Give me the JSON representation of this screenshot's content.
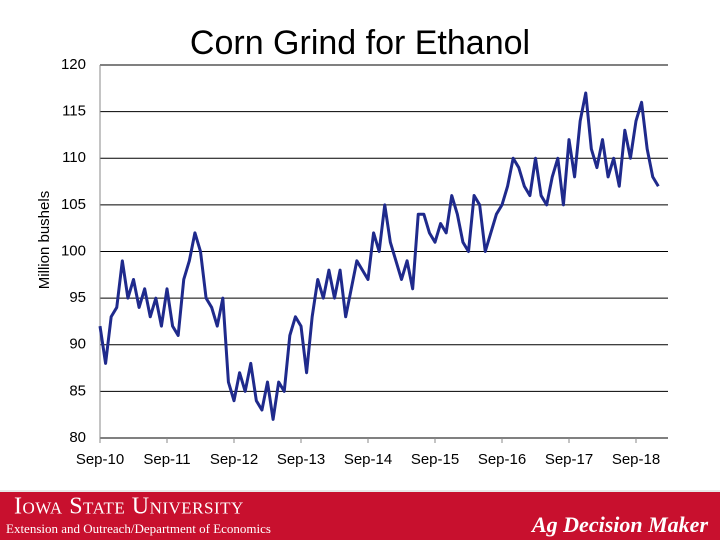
{
  "chart_data": {
    "type": "line",
    "title": "Corn Grind for Ethanol",
    "y_label": "Million bushels",
    "categories": [
      "Sep-10",
      null,
      null,
      null,
      null,
      null,
      null,
      null,
      null,
      null,
      null,
      null,
      "Sep-11",
      null,
      null,
      null,
      null,
      null,
      null,
      null,
      null,
      null,
      null,
      null,
      "Sep-12",
      null,
      null,
      null,
      null,
      null,
      null,
      null,
      null,
      null,
      null,
      null,
      "Sep-13",
      null,
      null,
      null,
      null,
      null,
      null,
      null,
      null,
      null,
      null,
      null,
      "Sep-14",
      null,
      null,
      null,
      null,
      null,
      null,
      null,
      null,
      null,
      null,
      null,
      "Sep-15",
      null,
      null,
      null,
      null,
      null,
      null,
      null,
      null,
      null,
      null,
      null,
      "Sep-16",
      null,
      null,
      null,
      null,
      null,
      null,
      null,
      null,
      null,
      null,
      null,
      "Sep-17",
      null,
      null,
      null,
      null,
      null,
      null,
      null,
      null,
      null,
      null,
      null,
      "Sep-18",
      null,
      null,
      null,
      null
    ],
    "series": [
      {
        "color": "#1f2a8c",
        "values": [
          92,
          88,
          93,
          94,
          99,
          95,
          97,
          94,
          96,
          93,
          95,
          92,
          96,
          92,
          91,
          97,
          99,
          102,
          100,
          95,
          94,
          92,
          95,
          86,
          84,
          87,
          85,
          88,
          84,
          83,
          86,
          82,
          86,
          85,
          91,
          93,
          92,
          87,
          93,
          97,
          95,
          98,
          95,
          98,
          93,
          96,
          99,
          98,
          97,
          102,
          100,
          105,
          101,
          99,
          97,
          99,
          96,
          104,
          104,
          102,
          101,
          103,
          102,
          106,
          104,
          101,
          100,
          106,
          105,
          100,
          102,
          104,
          105,
          107,
          110,
          109,
          107,
          106,
          110,
          106,
          105,
          108,
          110,
          105,
          112,
          108,
          114,
          117,
          111,
          109,
          112,
          108,
          110,
          107,
          113,
          110,
          114,
          116,
          111,
          108,
          107
        ]
      }
    ],
    "ylim": [
      80,
      120
    ],
    "yticks": [
      80,
      85,
      90,
      95,
      100,
      105,
      110,
      115,
      120
    ],
    "grid": true
  },
  "footer": {
    "university": "Iowa State University",
    "department": "Extension and Outreach/Department of Economics",
    "brand": "Ag Decision Maker"
  }
}
